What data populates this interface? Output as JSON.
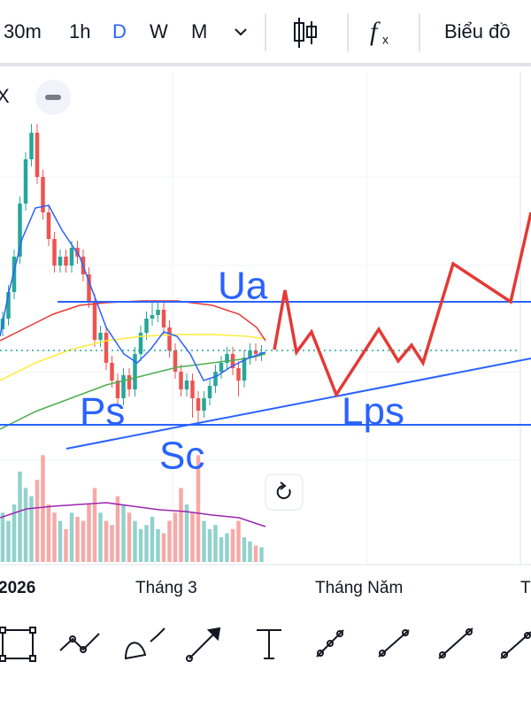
{
  "toolbar": {
    "intervals": [
      "30m",
      "1h",
      "D",
      "W",
      "M"
    ],
    "chart_button": "Biểu đồ"
  },
  "close_label": "X",
  "annotations": {
    "ua": "Ua",
    "ps": "Ps",
    "sc": "Sc",
    "lps": "Lps"
  },
  "time_axis": [
    "2026",
    "Tháng 3",
    "Tháng Năm",
    "T"
  ],
  "chart_data": {
    "type": "candlestick",
    "open": [
      32,
      35,
      42.5,
      52.5,
      67.5,
      80,
      87.5,
      75,
      65,
      57.5,
      50,
      52.5,
      50,
      55,
      52.5,
      47.5,
      40,
      29,
      31,
      22.5,
      17.5,
      12.5,
      19,
      15,
      25,
      31,
      35,
      36,
      37.5,
      32.5,
      26,
      20,
      15,
      17.5,
      12.5,
      9,
      12.5,
      16,
      20,
      22.5,
      25,
      21,
      17.5,
      24,
      26,
      25
    ],
    "high": [
      37,
      44.5,
      54.5,
      69.5,
      82,
      90,
      90,
      77,
      67,
      59.5,
      54.5,
      54.5,
      57,
      57,
      54.5,
      49.5,
      42,
      33,
      33,
      24.5,
      19.5,
      21,
      21,
      27,
      33,
      37,
      40,
      40,
      39.5,
      34.5,
      28,
      22,
      19.5,
      19.5,
      14.5,
      14.5,
      18,
      22,
      24.5,
      27,
      27,
      23,
      26,
      28,
      28,
      27.5
    ],
    "low": [
      30,
      33,
      40.5,
      50.5,
      65.5,
      78,
      73,
      63,
      55.5,
      48,
      48,
      48,
      48,
      50.5,
      45.5,
      38,
      27,
      27,
      20.5,
      15.5,
      10.5,
      10.5,
      13,
      13,
      23,
      29,
      33,
      34,
      30.5,
      24,
      18,
      13,
      13,
      7,
      5,
      7,
      10.5,
      14,
      18,
      20.5,
      19,
      13,
      15.5,
      22,
      23,
      23
    ],
    "close": [
      35,
      42.5,
      52.5,
      67.5,
      80,
      87.5,
      75,
      65,
      57.5,
      50,
      52.5,
      50,
      55,
      52.5,
      47.5,
      40,
      29,
      31,
      22.5,
      17.5,
      12.5,
      19,
      15,
      25,
      31,
      35,
      36,
      37.5,
      32.5,
      26,
      20,
      15,
      17.5,
      12.5,
      9,
      12.5,
      16,
      20,
      22.5,
      25,
      21,
      17.5,
      24,
      26,
      25,
      25.5
    ],
    "volume": [
      60,
      50,
      70,
      110,
      90,
      80,
      100,
      130,
      70,
      60,
      50,
      40,
      60,
      55,
      50,
      70,
      90,
      60,
      50,
      45,
      80,
      70,
      60,
      50,
      40,
      45,
      55,
      40,
      35,
      50,
      60,
      90,
      70,
      60,
      130,
      50,
      40,
      45,
      30,
      35,
      40,
      50,
      30,
      25,
      20,
      18
    ],
    "ylim": [
      0,
      100
    ],
    "vlim": [
      0,
      140
    ],
    "up_color": "#26a69a",
    "down_color": "#ef5350"
  }
}
